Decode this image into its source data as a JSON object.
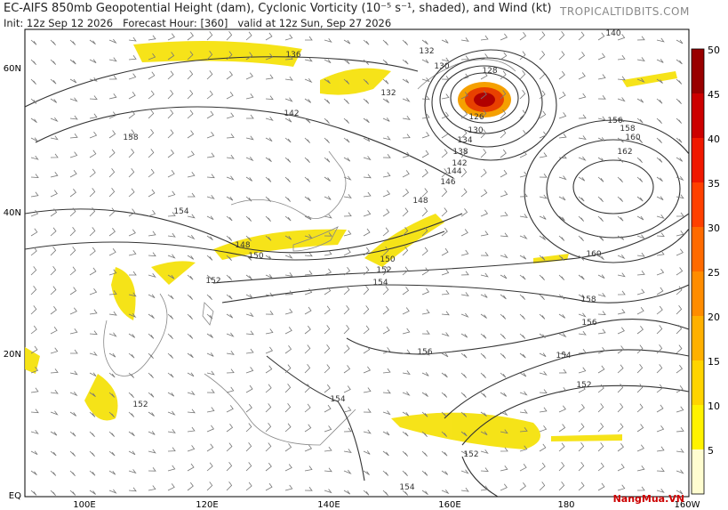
{
  "header": {
    "title": "EC-AIFS 850mb Geopotential Height (dam), Cyclonic Vorticity (10⁻⁵ s⁻¹, shaded), and Wind (kt)",
    "init": "Init: 12z Sep 12 2026",
    "forecast_hour": "Forecast Hour: [360]",
    "valid": "valid at 12z Sun, Sep 27 2026",
    "site": "TROPICALTIDBITS.COM"
  },
  "map": {
    "lat_labels": [
      "60N",
      "40N",
      "20N",
      "EQ"
    ],
    "lon_labels": [
      "100E",
      "120E",
      "140E",
      "160E",
      "180",
      "160W"
    ],
    "contour_labels": [
      "136",
      "132",
      "130",
      "128",
      "132",
      "140",
      "142",
      "158",
      "126",
      "130",
      "134",
      "138",
      "142",
      "144",
      "146",
      "148",
      "156",
      "158",
      "160",
      "162",
      "154",
      "148",
      "150",
      "150",
      "152",
      "154",
      "152",
      "160",
      "158",
      "156",
      "156",
      "154",
      "152",
      "154",
      "152",
      "154",
      "152"
    ]
  },
  "colorbar": {
    "ticks": [
      "5",
      "10",
      "15",
      "20",
      "25",
      "30",
      "35",
      "40",
      "45",
      "50"
    ]
  },
  "watermark": "NangMua.VN"
}
